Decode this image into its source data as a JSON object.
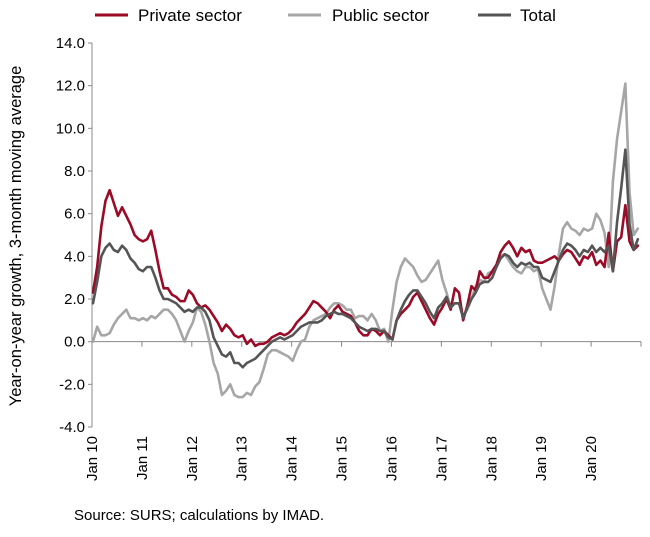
{
  "source_note": "Source: SURS; calculations by IMAD.",
  "chart_data": {
    "type": "line",
    "ylabel": "Year-on-year growth, 3-month moving average",
    "ylim": [
      -4.0,
      14.0
    ],
    "y_ticks": [
      "-4.0",
      "-2.0",
      "0.0",
      "2.0",
      "4.0",
      "6.0",
      "8.0",
      "10.0",
      "12.0",
      "14.0"
    ],
    "x_ticks": [
      "Jan 10",
      "Jan 11",
      "Jan 12",
      "Jan 13",
      "Jan 14",
      "Jan 15",
      "Jan 16",
      "Jan 17",
      "Jan 18",
      "Jan 19",
      "Jan 20"
    ],
    "x_start": "Jan 2010",
    "x_end": "Dec 2020",
    "x_step": "monthly",
    "grid": false,
    "legend_position": "top",
    "series": [
      {
        "name": "Private sector",
        "color": "#9b0a26",
        "values": [
          2.3,
          3.5,
          5.4,
          6.6,
          7.1,
          6.5,
          5.9,
          6.3,
          5.9,
          5.5,
          5.0,
          4.8,
          4.7,
          4.8,
          5.2,
          4.3,
          3.3,
          2.5,
          2.5,
          2.2,
          2.1,
          1.9,
          1.9,
          2.4,
          2.2,
          1.8,
          1.6,
          1.7,
          1.5,
          1.2,
          0.9,
          0.5,
          0.8,
          0.6,
          0.3,
          0.2,
          0.3,
          -0.1,
          0.1,
          -0.2,
          -0.1,
          -0.1,
          0.0,
          0.2,
          0.3,
          0.4,
          0.3,
          0.4,
          0.6,
          0.9,
          1.1,
          1.3,
          1.6,
          1.9,
          1.8,
          1.6,
          1.4,
          1.1,
          1.5,
          1.7,
          1.4,
          1.3,
          1.2,
          0.9,
          0.5,
          0.3,
          0.3,
          0.6,
          0.5,
          0.3,
          0.5,
          0.3,
          0.1,
          1.0,
          1.3,
          1.5,
          1.7,
          2.1,
          2.3,
          1.9,
          1.5,
          1.1,
          0.8,
          1.3,
          1.6,
          2.0,
          1.5,
          2.5,
          2.3,
          1.0,
          1.7,
          2.6,
          2.4,
          3.3,
          3.0,
          3.0,
          3.3,
          3.6,
          4.2,
          4.5,
          4.7,
          4.4,
          4.0,
          4.4,
          4.2,
          4.3,
          3.8,
          3.7,
          3.7,
          3.8,
          3.9,
          4.0,
          3.8,
          4.1,
          4.3,
          4.2,
          3.9,
          3.6,
          4.0,
          3.9,
          4.2,
          3.6,
          3.8,
          3.5,
          5.1,
          3.3,
          4.7,
          4.9,
          6.4,
          4.7,
          4.3,
          4.5
        ]
      },
      {
        "name": "Public sector",
        "color": "#a6a6a6",
        "values": [
          0.0,
          0.7,
          0.3,
          0.3,
          0.4,
          0.8,
          1.1,
          1.3,
          1.5,
          1.1,
          1.1,
          1.0,
          1.1,
          1.0,
          1.2,
          1.1,
          1.3,
          1.5,
          1.5,
          1.3,
          1.0,
          0.5,
          0.0,
          0.5,
          0.9,
          1.6,
          1.4,
          0.8,
          0.0,
          -1.0,
          -1.5,
          -2.5,
          -2.3,
          -2.0,
          -2.5,
          -2.6,
          -2.6,
          -2.4,
          -2.5,
          -2.1,
          -1.9,
          -1.3,
          -0.6,
          -0.4,
          -0.4,
          -0.5,
          -0.6,
          -0.7,
          -0.9,
          -0.4,
          0.0,
          0.1,
          0.7,
          1.0,
          1.1,
          1.2,
          1.3,
          1.6,
          1.8,
          1.8,
          1.7,
          1.5,
          1.5,
          1.1,
          1.2,
          1.2,
          1.0,
          1.3,
          1.0,
          0.5,
          0.6,
          0.0,
          1.5,
          2.8,
          3.5,
          3.9,
          3.7,
          3.5,
          3.1,
          2.8,
          2.9,
          3.2,
          3.5,
          3.8,
          2.9,
          2.3,
          1.6,
          1.8,
          1.8,
          1.2,
          1.5,
          2.0,
          2.6,
          2.9,
          2.8,
          3.2,
          3.3,
          3.6,
          4.0,
          4.1,
          3.8,
          3.5,
          3.3,
          3.2,
          3.5,
          3.5,
          3.3,
          3.4,
          2.5,
          2.0,
          1.5,
          2.6,
          4.1,
          5.3,
          5.6,
          5.3,
          5.2,
          5.0,
          5.3,
          5.2,
          5.3,
          6.0,
          5.7,
          5.1,
          3.5,
          7.5,
          9.5,
          10.8,
          12.1,
          7.0,
          5.0,
          5.3
        ]
      },
      {
        "name": "Total",
        "color": "#555555",
        "values": [
          1.8,
          2.8,
          4.0,
          4.4,
          4.6,
          4.3,
          4.2,
          4.5,
          4.3,
          3.9,
          3.7,
          3.4,
          3.3,
          3.5,
          3.5,
          3.0,
          2.4,
          2.0,
          2.0,
          1.9,
          1.8,
          1.6,
          1.4,
          1.5,
          1.4,
          1.6,
          1.6,
          1.4,
          1.0,
          0.2,
          -0.2,
          -0.6,
          -0.7,
          -0.5,
          -1.0,
          -1.0,
          -1.2,
          -1.0,
          -0.9,
          -0.8,
          -0.6,
          -0.4,
          -0.2,
          0.0,
          0.1,
          0.2,
          0.1,
          0.2,
          0.3,
          0.5,
          0.7,
          0.8,
          0.9,
          0.9,
          0.9,
          1.0,
          1.2,
          1.3,
          1.4,
          1.3,
          1.3,
          1.2,
          1.1,
          0.9,
          0.7,
          0.6,
          0.5,
          0.6,
          0.6,
          0.5,
          0.5,
          0.2,
          0.1,
          1.0,
          1.5,
          1.9,
          2.2,
          2.4,
          2.4,
          2.1,
          1.8,
          1.4,
          1.1,
          1.6,
          1.8,
          2.1,
          1.6,
          1.8,
          1.8,
          1.1,
          1.6,
          2.0,
          2.3,
          2.7,
          2.8,
          2.8,
          3.0,
          3.5,
          3.9,
          4.1,
          4.0,
          3.7,
          3.5,
          3.7,
          3.6,
          3.7,
          3.5,
          3.5,
          3.0,
          2.9,
          2.8,
          3.3,
          3.8,
          4.3,
          4.6,
          4.5,
          4.3,
          4.0,
          4.3,
          4.2,
          4.5,
          4.2,
          4.4,
          4.2,
          4.5,
          3.3,
          5.6,
          7.2,
          9.0,
          5.5,
          4.3,
          4.8
        ]
      }
    ]
  }
}
